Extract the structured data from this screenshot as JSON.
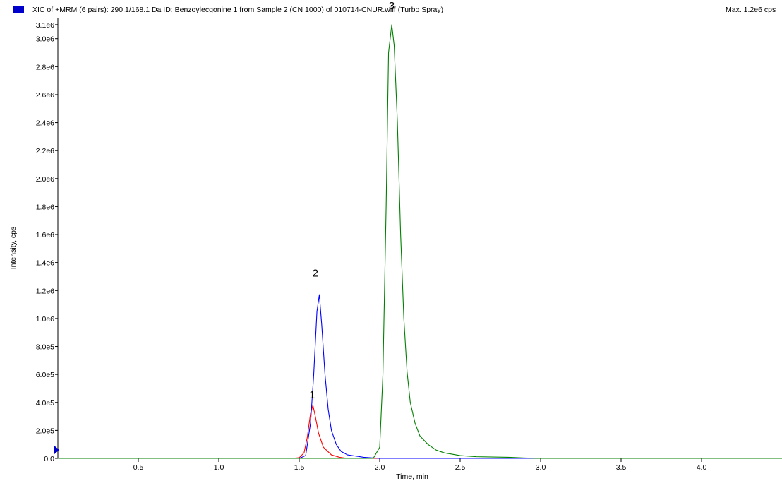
{
  "header": {
    "title": "XIC of +MRM (6 pairs): 290.1/168.1 Da ID: Benzoylecgonine 1 from Sample 2 (CN 1000) of 010714-CNUR.wiff (Turbo Spray)",
    "max_label": "Max. 1.2e6 cps",
    "marker_color": "#0000cc"
  },
  "chart_data": {
    "type": "line",
    "xlabel": "Time, min",
    "ylabel": "Intensity, cps",
    "xlim": [
      0,
      4.5
    ],
    "ylim": [
      0,
      3150000.0
    ],
    "x_ticks": [
      0.5,
      1.0,
      1.5,
      2.0,
      2.5,
      3.0,
      3.5,
      4.0
    ],
    "x_tick_labels": [
      "0.5",
      "1.0",
      "1.5",
      "2.0",
      "2.5",
      "3.0",
      "3.5",
      "4.0"
    ],
    "y_ticks": [
      0,
      200000,
      400000,
      600000,
      800000,
      1000000,
      1200000,
      1400000,
      1600000,
      1800000,
      2000000,
      2200000,
      2400000,
      2600000,
      2800000,
      3000000,
      3100000
    ],
    "y_tick_labels": [
      "0.0",
      "2.0e5",
      "4.0e5",
      "6.0e5",
      "8.0e5",
      "1.0e6",
      "1.2e6",
      "1.4e6",
      "1.6e6",
      "1.8e6",
      "2.0e6",
      "2.2e6",
      "2.4e6",
      "2.6e6",
      "2.8e6",
      "3.0e6",
      "3.1e6"
    ],
    "grid": false,
    "series": [
      {
        "color": "#ff0000",
        "points": [
          [
            0,
            0
          ],
          [
            1.45,
            0
          ],
          [
            1.5,
            5000
          ],
          [
            1.53,
            40000
          ],
          [
            1.55,
            150000
          ],
          [
            1.57,
            320000
          ],
          [
            1.585,
            380000
          ],
          [
            1.6,
            300000
          ],
          [
            1.62,
            180000
          ],
          [
            1.65,
            80000
          ],
          [
            1.7,
            25000
          ],
          [
            1.75,
            8000
          ],
          [
            1.8,
            0
          ],
          [
            4.5,
            0
          ]
        ]
      },
      {
        "color": "#0000ff",
        "points": [
          [
            0,
            0
          ],
          [
            1.5,
            0
          ],
          [
            1.54,
            20000
          ],
          [
            1.57,
            250000
          ],
          [
            1.59,
            600000
          ],
          [
            1.61,
            1050000
          ],
          [
            1.625,
            1170000
          ],
          [
            1.64,
            950000
          ],
          [
            1.66,
            600000
          ],
          [
            1.68,
            350000
          ],
          [
            1.7,
            200000
          ],
          [
            1.73,
            100000
          ],
          [
            1.76,
            50000
          ],
          [
            1.8,
            25000
          ],
          [
            1.9,
            8000
          ],
          [
            2.0,
            0
          ],
          [
            4.5,
            0
          ]
        ]
      },
      {
        "color": "#008000",
        "points": [
          [
            0,
            0
          ],
          [
            1.96,
            0
          ],
          [
            2.0,
            80000
          ],
          [
            2.02,
            600000
          ],
          [
            2.04,
            1800000
          ],
          [
            2.055,
            2900000
          ],
          [
            2.075,
            3100000
          ],
          [
            2.09,
            2950000
          ],
          [
            2.11,
            2400000
          ],
          [
            2.13,
            1600000
          ],
          [
            2.15,
            1000000
          ],
          [
            2.17,
            620000
          ],
          [
            2.19,
            400000
          ],
          [
            2.22,
            250000
          ],
          [
            2.25,
            160000
          ],
          [
            2.3,
            100000
          ],
          [
            2.35,
            60000
          ],
          [
            2.4,
            40000
          ],
          [
            2.5,
            20000
          ],
          [
            2.6,
            12000
          ],
          [
            2.8,
            8000
          ],
          [
            2.9,
            3000
          ],
          [
            3.0,
            0
          ],
          [
            4.5,
            0
          ]
        ]
      }
    ],
    "annotations": [
      {
        "text": "1",
        "x": 1.58,
        "y": 430000
      },
      {
        "text": "2",
        "x": 1.6,
        "y": 1300000
      },
      {
        "text": "3",
        "x": 2.075,
        "y": 3210000
      }
    ]
  }
}
